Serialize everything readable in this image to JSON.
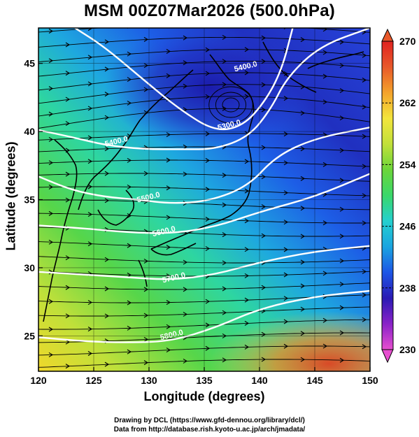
{
  "title": "MSM 00Z07Mar2026 (500.0hPa)",
  "xlabel": "Longitude (degrees)",
  "ylabel": "Latitude  (degrees)",
  "credit_line1": "Drawing by DCL (https://www.gfd-dennou.org/library/dcl/)",
  "credit_line2": "Data from http://database.rish.kyoto-u.ac.jp/arch/jmadata/",
  "map": {
    "lon_range": [
      120,
      150
    ],
    "lat_range": [
      22.4,
      47.6
    ],
    "lon_ticks": [
      120,
      125,
      130,
      135,
      140,
      145,
      150
    ],
    "lat_ticks": [
      25,
      30,
      35,
      40,
      45
    ],
    "shaded_field": "temperature",
    "contour_field": "geopotential height",
    "vectors": "wind streamlines",
    "contour_labels": [
      {
        "text": "5300.0",
        "lon": 137.3,
        "lat": 40.3
      },
      {
        "text": "5400.0",
        "lon": 127.1,
        "lat": 39.1
      },
      {
        "text": "5500.0",
        "lon": 130.0,
        "lat": 35.0
      },
      {
        "text": "5600.0",
        "lon": 131.4,
        "lat": 32.5
      },
      {
        "text": "5700.0",
        "lon": 132.3,
        "lat": 29.1
      },
      {
        "text": "5800.0",
        "lon": 132.1,
        "lat": 24.9
      },
      {
        "text": "5400.0",
        "lon": 138.8,
        "lat": 44.6
      }
    ],
    "contours": [
      {
        "value": 5300,
        "points": [
          [
            123.3,
            47.6
          ],
          [
            126.0,
            46.2
          ],
          [
            129.5,
            43.8
          ],
          [
            132.8,
            41.6
          ],
          [
            136.0,
            40.0
          ],
          [
            138.5,
            40.4
          ],
          [
            140.5,
            42.2
          ],
          [
            142.0,
            44.5
          ],
          [
            143.0,
            47.6
          ]
        ]
      },
      {
        "value": 5400,
        "points": [
          [
            120.0,
            40.1
          ],
          [
            123.0,
            39.6
          ],
          [
            126.0,
            39.0
          ],
          [
            129.5,
            38.7
          ],
          [
            133.0,
            38.7
          ],
          [
            136.0,
            38.7
          ],
          [
            139.0,
            39.6
          ],
          [
            141.0,
            41.6
          ],
          [
            142.5,
            44.0
          ],
          [
            145.5,
            46.3
          ],
          [
            150.0,
            47.6
          ]
        ]
      },
      {
        "value": 5500,
        "points": [
          [
            120.0,
            36.7
          ],
          [
            123.0,
            35.7
          ],
          [
            126.0,
            35.2
          ],
          [
            129.0,
            35.0
          ],
          [
            132.0,
            34.7
          ],
          [
            135.5,
            34.9
          ],
          [
            139.0,
            36.0
          ],
          [
            141.5,
            38.2
          ],
          [
            145.0,
            39.5
          ],
          [
            150.0,
            40.3
          ]
        ]
      },
      {
        "value": 5600,
        "points": [
          [
            120.0,
            33.1
          ],
          [
            124.0,
            32.9
          ],
          [
            128.0,
            32.6
          ],
          [
            132.0,
            32.5
          ],
          [
            136.0,
            33.0
          ],
          [
            140.0,
            34.1
          ],
          [
            145.0,
            35.2
          ],
          [
            150.0,
            36.9
          ]
        ]
      },
      {
        "value": 5700,
        "points": [
          [
            120.0,
            29.7
          ],
          [
            124.0,
            29.5
          ],
          [
            128.0,
            29.3
          ],
          [
            132.0,
            29.1
          ],
          [
            136.0,
            29.5
          ],
          [
            140.0,
            30.4
          ],
          [
            145.0,
            31.2
          ],
          [
            150.0,
            31.6
          ]
        ]
      },
      {
        "value": 5800,
        "points": [
          [
            120.0,
            24.9
          ],
          [
            124.0,
            24.6
          ],
          [
            128.0,
            24.5
          ],
          [
            132.0,
            24.6
          ],
          [
            136.0,
            25.6
          ],
          [
            140.0,
            27.0
          ],
          [
            145.0,
            27.9
          ],
          [
            150.0,
            28.3
          ]
        ]
      }
    ]
  },
  "colorbar": {
    "label_values": [
      230,
      238,
      246,
      254,
      262,
      270
    ],
    "range": [
      230,
      270
    ],
    "stops": [
      "#e74fd0",
      "#8a22c8",
      "#2a1ab4",
      "#1d55e6",
      "#1aa4e0",
      "#24d0cf",
      "#3ad86a",
      "#6bd63a",
      "#c2e03a",
      "#f3e53c",
      "#f4a32b",
      "#e8582a",
      "#e0231f"
    ]
  }
}
